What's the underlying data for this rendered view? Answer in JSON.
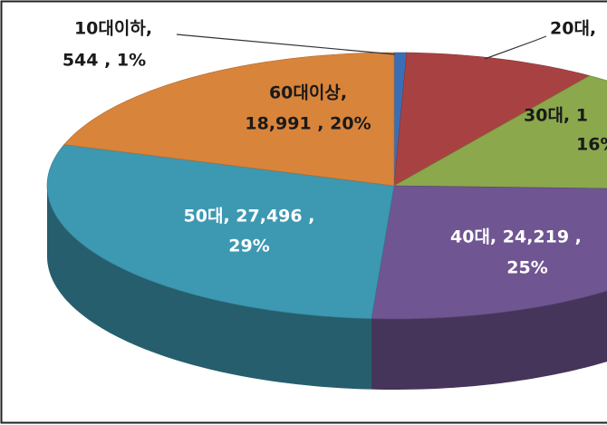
{
  "chart_data": {
    "type": "pie3d",
    "categories": [
      "10대이하",
      "20대",
      "30대",
      "40대",
      "50대",
      "60대이상"
    ],
    "values": [
      544,
      8500,
      15200,
      24219,
      27496,
      18991
    ],
    "value_labels": [
      [
        "10대이하,",
        "544 , 1%"
      ],
      [
        "20대,"
      ],
      [
        "30대, 1",
        "16%"
      ],
      [
        "40대, 24,219 ,",
        "25%"
      ],
      [
        "50대, 27,496 ,",
        "29%"
      ],
      [
        "60대이상,",
        "18,991 , 20%"
      ]
    ],
    "colors": [
      "#3b6fb5",
      "#a84242",
      "#8ba84c",
      "#6f5591",
      "#3d98b1",
      "#d9843b"
    ]
  }
}
